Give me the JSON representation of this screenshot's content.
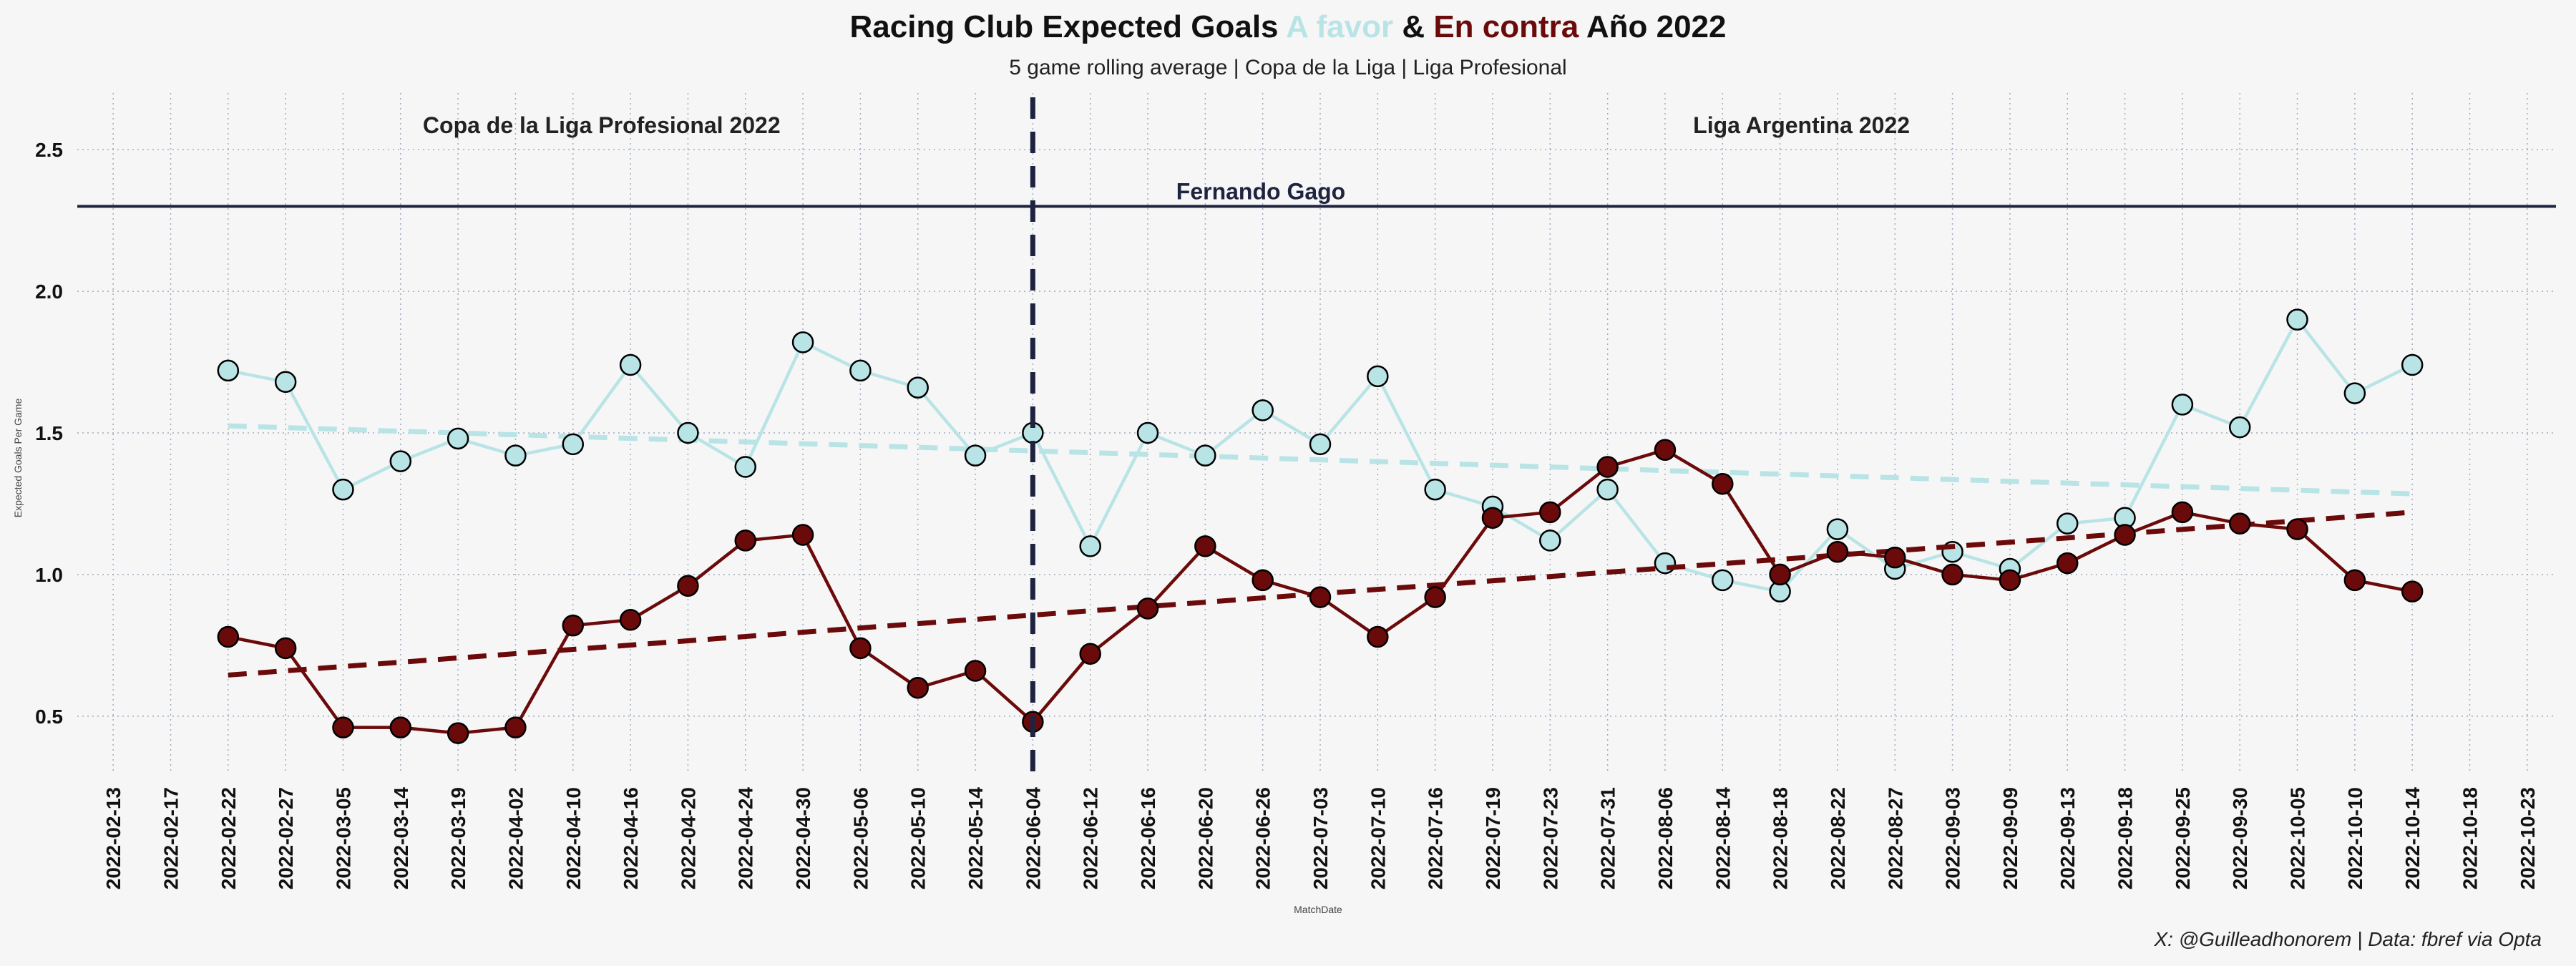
{
  "title": {
    "part1": "Racing Club Expected Goals ",
    "part2": "A favor",
    "part3": " & ",
    "part4": "En contra",
    "part5": " Año 2022"
  },
  "subtitle": "5 game rolling average | Copa de la Liga | Liga Profesional",
  "credit": "X: @Guilleadhonorem | Data: fbref via Opta",
  "colors": {
    "favor": "#b9e4e6",
    "contra": "#6b0a0a",
    "coach_line": "#1e2340",
    "divider": "#1e2340",
    "grid": "#8a9ab0"
  },
  "chart_data": {
    "type": "line",
    "xlabel": "MatchDate",
    "ylabel": "Expected Goals Per Game",
    "ylim": [
      0.3,
      2.7
    ],
    "yticks": [
      0.5,
      1.0,
      1.5,
      2.0,
      2.5
    ],
    "ytick_labels": [
      "0.5",
      "1.0",
      "1.5",
      "2.0",
      "2.5"
    ],
    "grid": true,
    "x_ticks": [
      "2022-02-13",
      "2022-02-17",
      "2022-02-22",
      "2022-02-27",
      "2022-03-05",
      "2022-03-14",
      "2022-03-19",
      "2022-04-02",
      "2022-04-10",
      "2022-04-16",
      "2022-04-20",
      "2022-04-24",
      "2022-04-30",
      "2022-05-06",
      "2022-05-10",
      "2022-05-14",
      "2022-06-04",
      "2022-06-12",
      "2022-06-16",
      "2022-06-20",
      "2022-06-26",
      "2022-07-03",
      "2022-07-10",
      "2022-07-16",
      "2022-07-19",
      "2022-07-23",
      "2022-07-31",
      "2022-08-06",
      "2022-08-14",
      "2022-08-18",
      "2022-08-22",
      "2022-08-27",
      "2022-09-03",
      "2022-09-09",
      "2022-09-13",
      "2022-09-18",
      "2022-09-25",
      "2022-09-30",
      "2022-10-05",
      "2022-10-10",
      "2022-10-14",
      "2022-10-18",
      "2022-10-23"
    ],
    "match_dates": [
      "2022-02-22",
      "2022-02-27",
      "2022-03-05",
      "2022-03-14",
      "2022-03-19",
      "2022-04-02",
      "2022-04-10",
      "2022-04-16",
      "2022-04-20",
      "2022-04-24",
      "2022-04-30",
      "2022-05-06",
      "2022-05-10",
      "2022-05-14",
      "2022-06-04",
      "2022-06-12",
      "2022-06-16",
      "2022-06-20",
      "2022-06-26",
      "2022-07-03",
      "2022-07-10",
      "2022-07-16",
      "2022-07-19",
      "2022-07-23",
      "2022-07-31",
      "2022-08-06",
      "2022-08-14",
      "2022-08-18",
      "2022-08-22",
      "2022-08-27",
      "2022-09-03",
      "2022-09-09",
      "2022-09-13",
      "2022-09-18",
      "2022-09-25",
      "2022-09-30",
      "2022-10-05",
      "2022-10-10",
      "2022-10-14"
    ],
    "series": [
      {
        "key": "favor",
        "values": [
          1.72,
          1.68,
          1.3,
          1.4,
          1.48,
          1.42,
          1.46,
          1.74,
          1.5,
          1.38,
          1.82,
          1.72,
          1.66,
          1.42,
          1.5,
          1.1,
          1.5,
          1.42,
          1.58,
          1.46,
          1.7,
          1.3,
          1.24,
          1.12,
          1.3,
          1.04,
          0.98,
          0.94,
          1.16,
          1.02,
          1.08,
          1.02,
          1.18,
          1.2,
          1.6,
          1.52,
          1.9,
          1.64,
          1.74
        ],
        "trend": [
          1.525,
          1.285
        ]
      },
      {
        "key": "contra",
        "values": [
          0.78,
          0.74,
          0.46,
          0.46,
          0.44,
          0.46,
          0.82,
          0.84,
          0.96,
          1.12,
          1.14,
          0.74,
          0.6,
          0.66,
          0.48,
          0.72,
          0.88,
          1.1,
          0.98,
          0.92,
          0.78,
          0.92,
          1.2,
          1.22,
          1.38,
          1.44,
          1.32,
          1.0,
          1.08,
          1.06,
          1.0,
          0.98,
          1.04,
          1.14,
          1.22,
          1.18,
          1.16,
          0.98,
          0.94
        ],
        "trend": [
          0.645,
          1.22
        ]
      }
    ],
    "annotations": {
      "section_left": "Copa de la Liga Profesional 2022",
      "section_right": "Liga Argentina 2022",
      "coach": "Fernando Gago",
      "coach_y": 2.3,
      "divider_date": "2022-06-04"
    }
  }
}
